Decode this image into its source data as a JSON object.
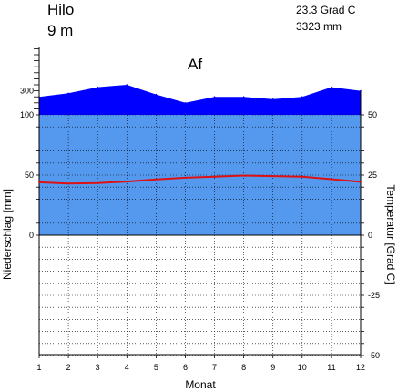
{
  "station": {
    "name": "Hilo",
    "elevation": "9 m",
    "mean_temperature": "23.3 Grad C",
    "annual_precipitation": "3323 mm",
    "climate_class": "Af"
  },
  "chart_data": {
    "type": "line",
    "title": "Hilo",
    "xlabel": "Monat",
    "ylabel_left": "Niederschlag [mm]",
    "ylabel_right": "Temperatur [Grad C]",
    "categories": [
      "1",
      "2",
      "3",
      "4",
      "5",
      "6",
      "7",
      "8",
      "9",
      "10",
      "11",
      "12"
    ],
    "left_ticks": [
      {
        "value": 300,
        "label": "300"
      },
      {
        "value": 100,
        "label": "100"
      },
      {
        "value": 50,
        "label": "50"
      },
      {
        "value": 0,
        "label": "0"
      }
    ],
    "right_ticks": [
      "50",
      "25",
      "0",
      "-25",
      "-50"
    ],
    "ylim_temperature": [
      -50,
      50
    ],
    "precipitation_scale": "0-100 mm linear (50 mm = 25 Grad C); above 100 mm compressed (10:1)",
    "series": [
      {
        "name": "Niederschlag",
        "unit": "mm",
        "color": "#0000ff",
        "values": [
          250,
          280,
          330,
          350,
          270,
          200,
          250,
          250,
          230,
          250,
          330,
          300
        ]
      },
      {
        "name": "Temperatur",
        "unit": "Grad C",
        "color": "#dd1111",
        "values": [
          22.0,
          21.5,
          21.7,
          22.3,
          23.2,
          23.9,
          24.3,
          24.8,
          24.6,
          24.3,
          23.3,
          22.2
        ]
      }
    ],
    "colors": {
      "humid_fill": "#5599ee",
      "perhumid_fill": "#0000ff",
      "temperature_line": "#dd1111"
    },
    "grid": true
  }
}
